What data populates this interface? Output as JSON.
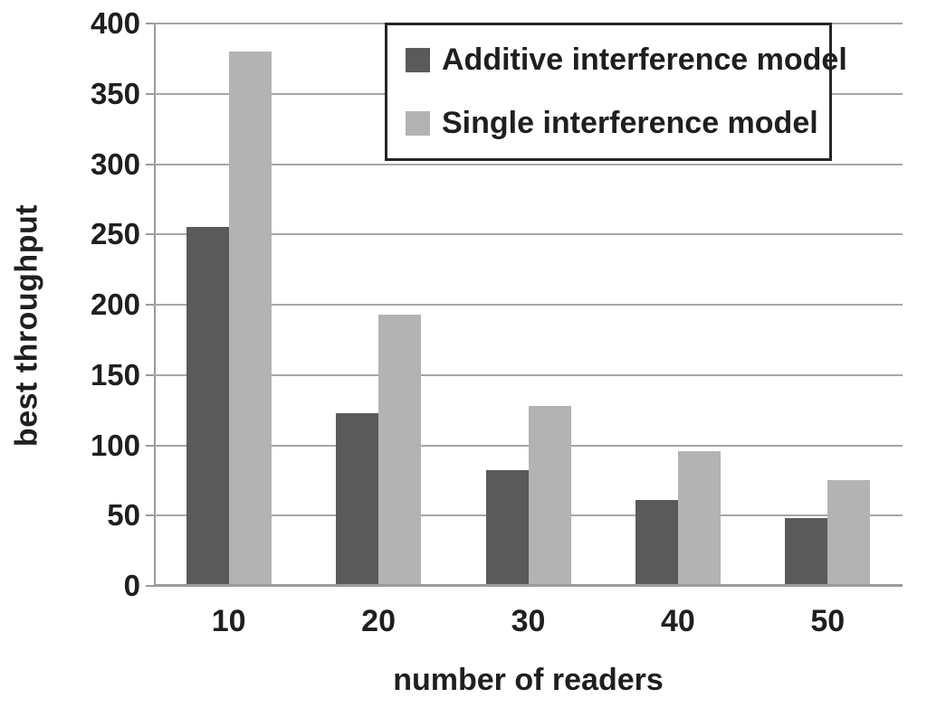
{
  "chart_data": {
    "type": "bar",
    "title": "",
    "xlabel": "number of readers",
    "ylabel": "best throughput",
    "categories": [
      "10",
      "20",
      "30",
      "40",
      "50"
    ],
    "series": [
      {
        "name": "Additive interference model",
        "color": "#5a5a5a",
        "values": [
          255,
          123,
          82,
          61,
          48
        ]
      },
      {
        "name": "Single interference model",
        "color": "#b3b3b3",
        "values": [
          380,
          193,
          128,
          96,
          75
        ]
      }
    ],
    "ylim": [
      0,
      400
    ],
    "yticks": [
      0,
      50,
      100,
      150,
      200,
      250,
      300,
      350,
      400
    ],
    "grid": "horizontal",
    "gridline_color": "#a6a6a6",
    "axis_color": "#9b9b9b",
    "text_color": "#1f1f1f",
    "legend_position": "top-right",
    "legend_border_color": "#262626"
  }
}
